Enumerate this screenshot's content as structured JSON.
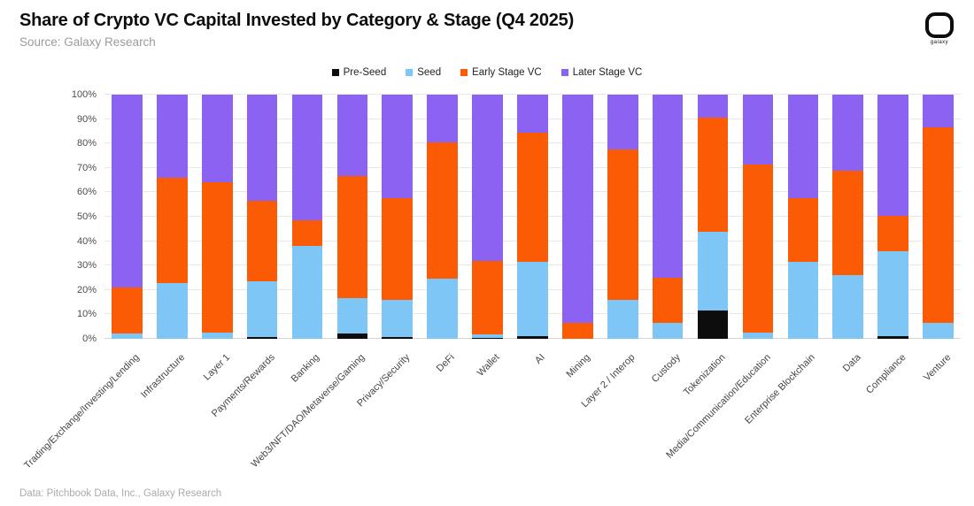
{
  "header": {
    "title": "Share of Crypto VC Capital Invested by Category & Stage (Q4 2025)",
    "source": "Source: Galaxy Research",
    "logo_word": "galaxy"
  },
  "footer": {
    "credit": "Data: Pitchbook Data, Inc., Galaxy Research"
  },
  "colors": {
    "pre_seed": "#0d0d0d",
    "seed": "#7dc6f5",
    "early": "#fc5b05",
    "later": "#8c62f2",
    "grid": "#e8e8e8",
    "axis_text": "#4d4d4d"
  },
  "chart_data": {
    "type": "bar",
    "stacked": true,
    "title": "Share of Crypto VC Capital Invested by Category & Stage (Q4 2025)",
    "xlabel": "",
    "ylabel": "",
    "ylim": [
      0,
      100
    ],
    "grid": true,
    "legend_position": "top-center",
    "yticks": [
      "0%",
      "10%",
      "20%",
      "30%",
      "40%",
      "50%",
      "60%",
      "70%",
      "80%",
      "90%",
      "100%"
    ],
    "legend": [
      {
        "label": "Pre-Seed",
        "color": "#0d0d0d"
      },
      {
        "label": "Seed",
        "color": "#7dc6f5"
      },
      {
        "label": "Early Stage VC",
        "color": "#fc5b05"
      },
      {
        "label": "Later Stage VC",
        "color": "#8c62f2"
      }
    ],
    "categories": [
      "Trading/Exchange/Investing/Lending",
      "Infrastructure",
      "Layer 1",
      "Payments/Rewards",
      "Banking",
      "Web3/NFT/DAO/Metaverse/Gaming",
      "Privacy/Security",
      "DeFi",
      "Wallet",
      "AI",
      "Mining",
      "Layer 2 / Interop",
      "Custody",
      "Tokenization",
      "Media/Communication/Education",
      "Enterprise Blockchain",
      "Data",
      "Compliance",
      "Venture"
    ],
    "series": [
      {
        "name": "Pre-Seed",
        "values": [
          0,
          0,
          0,
          0.7,
          0,
          2,
          0.7,
          0,
          0.5,
          1,
          0,
          0,
          0,
          11.5,
          0,
          0,
          0,
          1,
          0
        ]
      },
      {
        "name": "Seed",
        "values": [
          2,
          23,
          2.5,
          22.8,
          38,
          14.5,
          15.3,
          24.5,
          1.5,
          30.5,
          0,
          16,
          6.5,
          32.5,
          2.5,
          31.5,
          26,
          35,
          6.5
        ]
      },
      {
        "name": "Early Stage VC",
        "values": [
          19,
          43,
          61.5,
          33,
          10.5,
          50,
          41.5,
          56,
          30,
          53,
          6.5,
          61.5,
          18.5,
          46.5,
          69,
          26,
          43,
          14.5,
          80
        ]
      },
      {
        "name": "Later Stage VC",
        "values": [
          79,
          34,
          36,
          43.5,
          51.5,
          33.5,
          42.5,
          19.5,
          68,
          15.5,
          93.5,
          22.5,
          75,
          9.5,
          28.5,
          42.5,
          31,
          49.5,
          13.5
        ]
      }
    ]
  }
}
